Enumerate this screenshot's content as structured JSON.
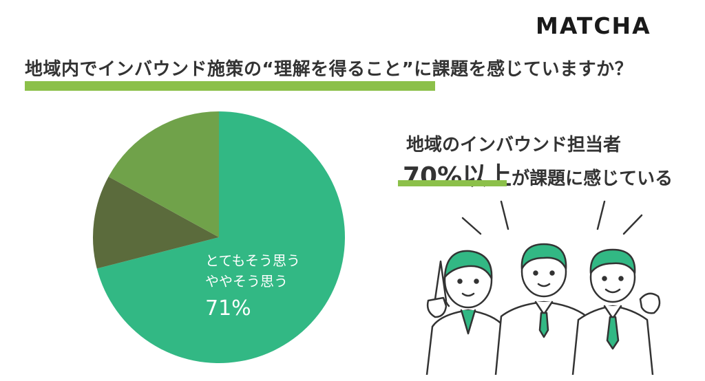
{
  "brand": {
    "logo_text": "MATCHA"
  },
  "title": "地域内でインバウンド施策の“理解を得ること”に課題を感じていますか？",
  "headline": {
    "line1": "地域のインバウンド担当者",
    "emphasis": "70%以上",
    "line2_rest": "が課題に感じている"
  },
  "colors": {
    "accent_bar": "#8cc04a",
    "slice_main": "#32b884",
    "slice_dark": "#5b6b3c",
    "slice_light": "#70a24a"
  },
  "chart_data": {
    "type": "pie",
    "slices": [
      {
        "value": 71,
        "color": "#32b884"
      },
      {
        "value": 12,
        "color": "#5b6b3c"
      },
      {
        "value": 17,
        "color": "#70a24a"
      }
    ],
    "label_lines": [
      "とてもそう思う",
      "ややそう思う",
      "71%"
    ],
    "start_angle_deg": 0,
    "direction": "clockwise"
  },
  "illustration": {
    "subject": "three-people-cheering",
    "icon": "people-cheering-icon"
  }
}
